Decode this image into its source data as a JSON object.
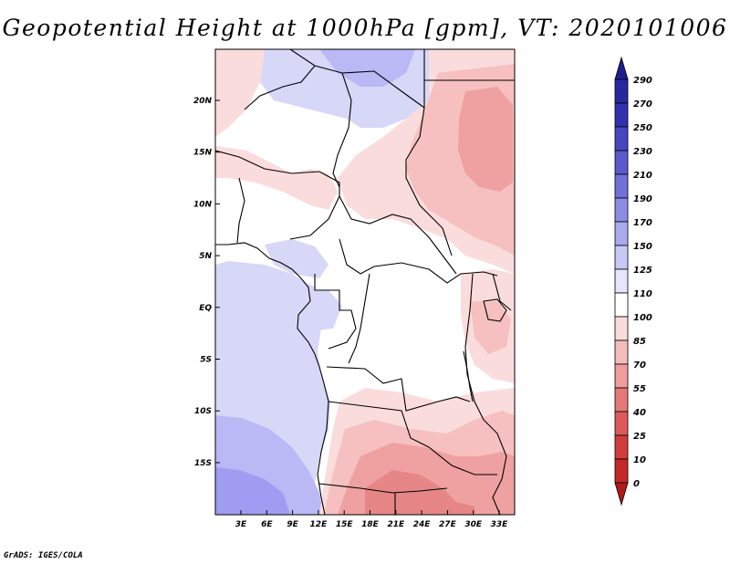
{
  "title": "Geopotential Height at 1000hPa [gpm], VT: 2020101006",
  "footer": "GrADS: IGES/COLA",
  "map": {
    "lat_labels": [
      "20N",
      "15N",
      "10N",
      "5N",
      "EQ",
      "5S",
      "10S",
      "15S"
    ],
    "lon_labels": [
      "3E",
      "6E",
      "9E",
      "12E",
      "15E",
      "18E",
      "21E",
      "24E",
      "27E",
      "30E",
      "33E"
    ],
    "extent": {
      "lon_min": 0,
      "lon_max": 35,
      "lat_min": -20,
      "lat_max": 25
    }
  },
  "colorbar": {
    "levels": [
      "290",
      "270",
      "250",
      "230",
      "210",
      "190",
      "170",
      "150",
      "125",
      "110",
      "100",
      "85",
      "70",
      "55",
      "40",
      "25",
      "10",
      "0"
    ],
    "colors": [
      "#1e1e8c",
      "#28289e",
      "#3232b0",
      "#4646c0",
      "#5a5acc",
      "#7070d8",
      "#8c8ce4",
      "#aaaaee",
      "#c8c8f5",
      "#e4e4fa",
      "#ffffff",
      "#fbdcdc",
      "#f5bcbc",
      "#ee9c9c",
      "#e67878",
      "#de5a5a",
      "#d23c3c",
      "#c42828",
      "#b01a1a"
    ]
  },
  "field_colors": {
    "blue_strong": "#9f9cf2",
    "blue_mid": "#bab8f5",
    "blue_light": "#d7d7f8",
    "pink_light": "#fbdcdc",
    "pink_mid": "#f6c0c0",
    "pink_strong": "#efa1a1",
    "red_deep": "#e68686"
  }
}
